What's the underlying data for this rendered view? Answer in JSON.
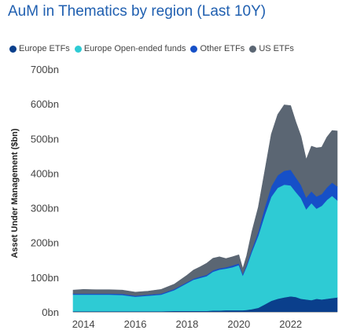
{
  "chart_data": {
    "type": "area",
    "stacked": true,
    "title": "AuM in Thematics by region (Last 10Y)",
    "xlabel": "",
    "ylabel": "Asset Under Management ($bn)",
    "xlim": [
      2013.6,
      2023.8
    ],
    "ylim": [
      0,
      700
    ],
    "yticks": [
      0,
      100,
      200,
      300,
      400,
      500,
      600,
      700
    ],
    "ytick_labels": [
      "0bn",
      "100bn",
      "200bn",
      "300bn",
      "400bn",
      "500bn",
      "600bn",
      "700bn"
    ],
    "xticks": [
      2014,
      2016,
      2018,
      2020,
      2022
    ],
    "xtick_labels": [
      "2014",
      "2016",
      "2018",
      "2020",
      "2022"
    ],
    "legend_position": "top-left",
    "grid": false,
    "x": [
      2013.6,
      2014.0,
      2014.5,
      2015.0,
      2015.5,
      2016.0,
      2016.5,
      2017.0,
      2017.5,
      2018.0,
      2018.25,
      2018.5,
      2018.75,
      2019.0,
      2019.25,
      2019.5,
      2019.75,
      2020.0,
      2020.15,
      2020.3,
      2020.5,
      2020.75,
      2021.0,
      2021.25,
      2021.5,
      2021.75,
      2022.0,
      2022.2,
      2022.4,
      2022.6,
      2022.8,
      2023.0,
      2023.2,
      2023.4,
      2023.6,
      2023.8
    ],
    "series": [
      {
        "name": "Europe ETFs",
        "color": "#0a3f8c",
        "values": [
          2,
          2,
          2,
          2,
          2,
          2,
          2,
          2,
          3,
          3,
          3,
          3,
          3,
          4,
          4,
          5,
          5,
          5,
          5,
          6,
          8,
          12,
          22,
          32,
          38,
          42,
          45,
          43,
          38,
          36,
          34,
          38,
          36,
          38,
          40,
          42
        ]
      },
      {
        "name": "Europe Open-ended funds",
        "color": "#2ecbd4",
        "values": [
          48,
          48,
          48,
          48,
          47,
          42,
          45,
          48,
          60,
          80,
          90,
          95,
          100,
          112,
          118,
          120,
          124,
          130,
          100,
          125,
          165,
          208,
          258,
          300,
          320,
          325,
          320,
          303,
          290,
          260,
          280,
          260,
          270,
          285,
          295,
          280
        ]
      },
      {
        "name": "Other ETFs",
        "color": "#1650c8",
        "values": [
          3,
          3,
          3,
          3,
          3,
          3,
          3,
          3,
          3,
          3,
          3,
          4,
          4,
          4,
          4,
          4,
          5,
          5,
          5,
          6,
          8,
          12,
          22,
          30,
          36,
          40,
          45,
          42,
          38,
          34,
          34,
          35,
          34,
          36,
          38,
          40
        ]
      },
      {
        "name": "US ETFs",
        "color": "#5b6673",
        "values": [
          10,
          12,
          11,
          11,
          11,
          10,
          10,
          12,
          14,
          20,
          25,
          28,
          33,
          35,
          33,
          25,
          25,
          25,
          15,
          25,
          50,
          70,
          105,
          150,
          175,
          190,
          185,
          160,
          140,
          110,
          130,
          140,
          135,
          145,
          150,
          160
        ]
      }
    ]
  }
}
